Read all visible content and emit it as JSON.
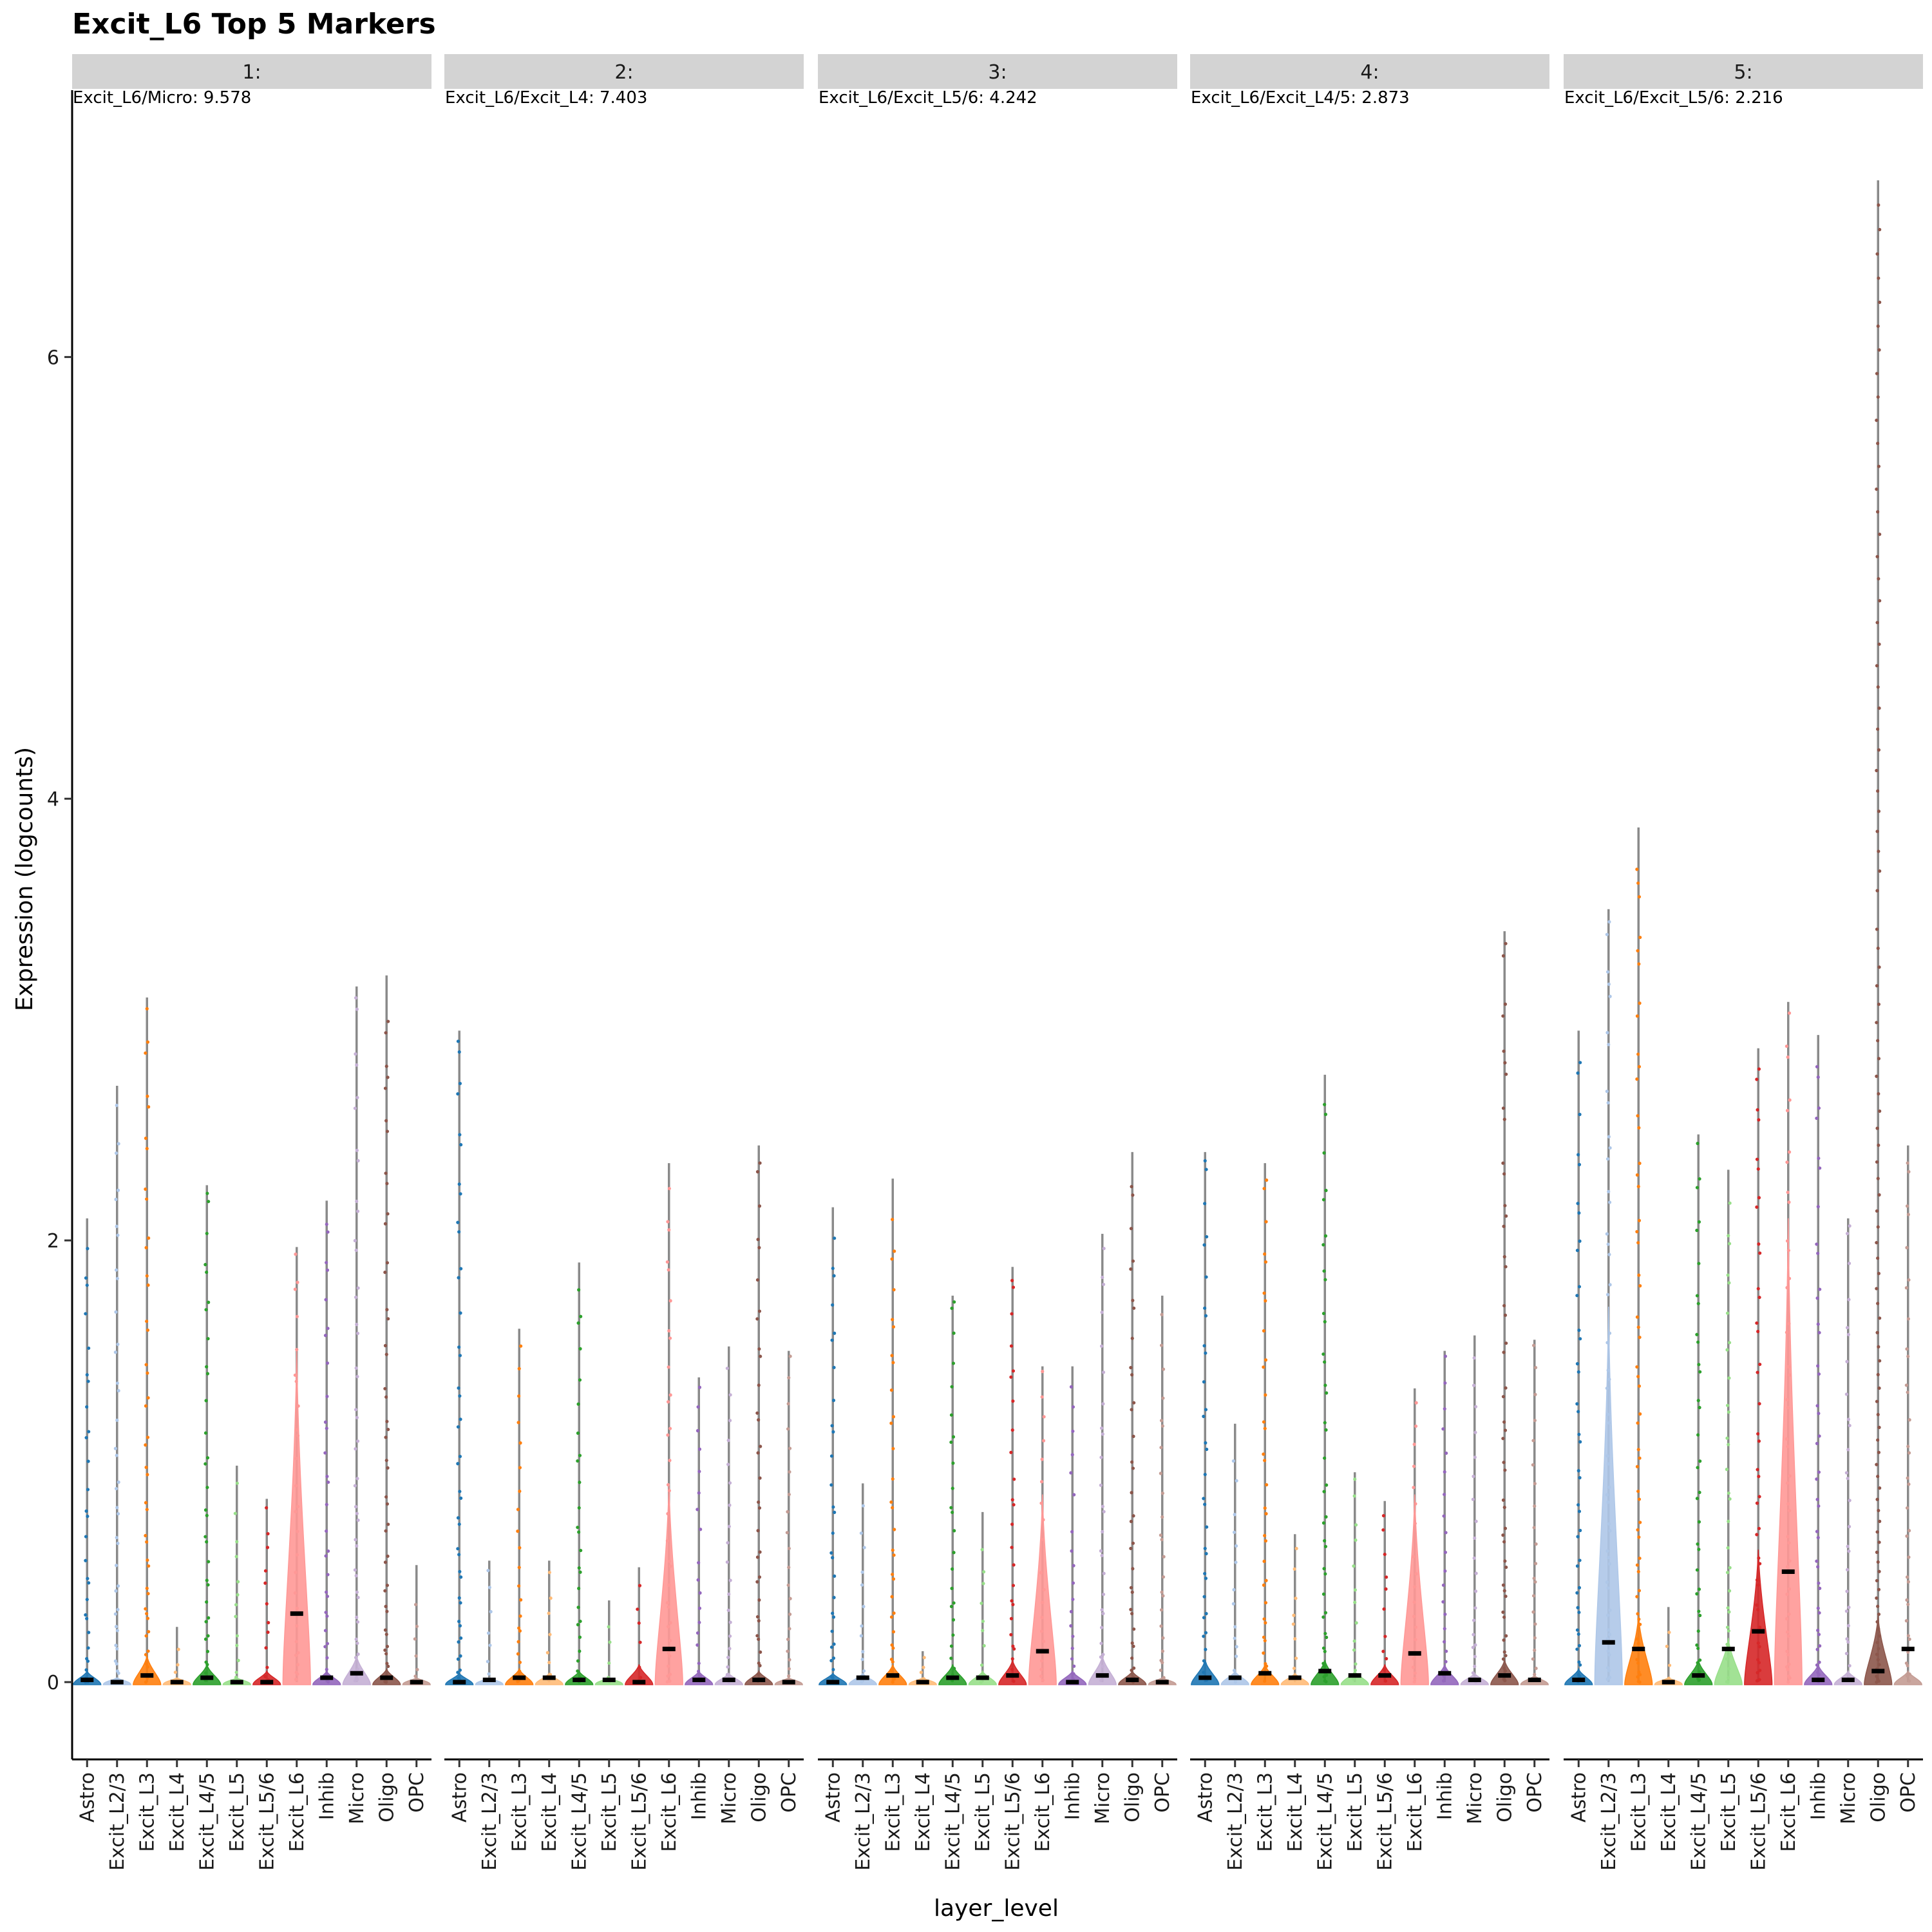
{
  "chart_data": {
    "type": "violin",
    "title": "Excit_L6 Top 5 Markers",
    "xlabel": "layer_level",
    "ylabel": "Expression (logcounts)",
    "ylim": [
      -0.35,
      7.15
    ],
    "yticks": [
      0,
      2,
      4,
      6
    ],
    "categories": [
      "Astro",
      "Excit_L2/3",
      "Excit_L3",
      "Excit_L4",
      "Excit_L4/5",
      "Excit_L5",
      "Excit_L5/6",
      "Excit_L6",
      "Inhib",
      "Micro",
      "Oligo",
      "OPC"
    ],
    "colors": {
      "Astro": "#1F77B4",
      "Excit_L2/3": "#AEC7E8",
      "Excit_L3": "#FF7F0E",
      "Excit_L4": "#FFBB78",
      "Excit_L4/5": "#2CA02C",
      "Excit_L5": "#98DF8A",
      "Excit_L5/6": "#D62728",
      "Excit_L6": "#FF9896",
      "Inhib": "#9467BD",
      "Micro": "#C5B0D5",
      "Oligo": "#8C564B",
      "OPC": "#C49C94"
    },
    "panels": [
      {
        "strip": "1:",
        "label": "Excit_L6/Micro: 9.578",
        "max": [
          2.1,
          2.7,
          3.1,
          0.25,
          2.25,
          0.98,
          0.83,
          1.97,
          2.18,
          3.15,
          3.2,
          0.53
        ],
        "mean": [
          0.01,
          0.0,
          0.03,
          0.0,
          0.02,
          0.0,
          0.0,
          0.31,
          0.02,
          0.04,
          0.02,
          0.0
        ],
        "violin": [
          0.05,
          0.02,
          0.12,
          0.02,
          0.08,
          0.02,
          0.05,
          1.5,
          0.05,
          0.12,
          0.06,
          0.02
        ]
      },
      {
        "strip": "2:",
        "label": "Excit_L6/Excit_L4: 7.403",
        "max": [
          2.95,
          0.55,
          1.6,
          0.55,
          1.9,
          0.37,
          0.52,
          2.35,
          1.38,
          1.52,
          2.43,
          1.5
        ],
        "mean": [
          0.0,
          0.01,
          0.02,
          0.02,
          0.01,
          0.01,
          0.0,
          0.15,
          0.01,
          0.01,
          0.01,
          0.0
        ],
        "violin": [
          0.04,
          0.02,
          0.06,
          0.04,
          0.05,
          0.02,
          0.08,
          0.9,
          0.05,
          0.04,
          0.05,
          0.02
        ]
      },
      {
        "strip": "3:",
        "label": "Excit_L6/Excit_L5/6: 4.242",
        "max": [
          2.15,
          0.9,
          2.28,
          0.14,
          1.75,
          0.77,
          1.88,
          1.43,
          1.43,
          2.03,
          2.4,
          1.75
        ],
        "mean": [
          0.0,
          0.02,
          0.03,
          0.0,
          0.02,
          0.02,
          0.03,
          0.14,
          0.0,
          0.03,
          0.01,
          0.0
        ],
        "violin": [
          0.04,
          0.04,
          0.08,
          0.02,
          0.08,
          0.05,
          0.1,
          0.85,
          0.05,
          0.12,
          0.05,
          0.02
        ]
      },
      {
        "strip": "4:",
        "label": "Excit_L6/Excit_L4/5: 2.873",
        "max": [
          2.4,
          1.17,
          2.35,
          0.67,
          2.75,
          0.95,
          0.82,
          1.33,
          1.5,
          1.57,
          3.4,
          1.55
        ],
        "mean": [
          0.02,
          0.02,
          0.04,
          0.02,
          0.05,
          0.03,
          0.03,
          0.13,
          0.04,
          0.01,
          0.03,
          0.01
        ],
        "violin": [
          0.1,
          0.05,
          0.08,
          0.04,
          0.1,
          0.05,
          0.08,
          0.85,
          0.08,
          0.04,
          0.1,
          0.03
        ]
      },
      {
        "strip": "5:",
        "label": "Excit_L6/Excit_L5/6: 2.216",
        "max": [
          2.95,
          3.5,
          3.87,
          0.34,
          2.48,
          2.32,
          2.87,
          3.08,
          2.93,
          2.1,
          6.8,
          2.43
        ],
        "mean": [
          0.01,
          0.18,
          0.15,
          0.0,
          0.03,
          0.15,
          0.23,
          0.5,
          0.01,
          0.01,
          0.05,
          0.15
        ],
        "violin": [
          0.06,
          1.7,
          0.3,
          0.02,
          0.1,
          0.2,
          0.6,
          2.1,
          0.08,
          0.05,
          0.3,
          0.05
        ]
      }
    ]
  }
}
